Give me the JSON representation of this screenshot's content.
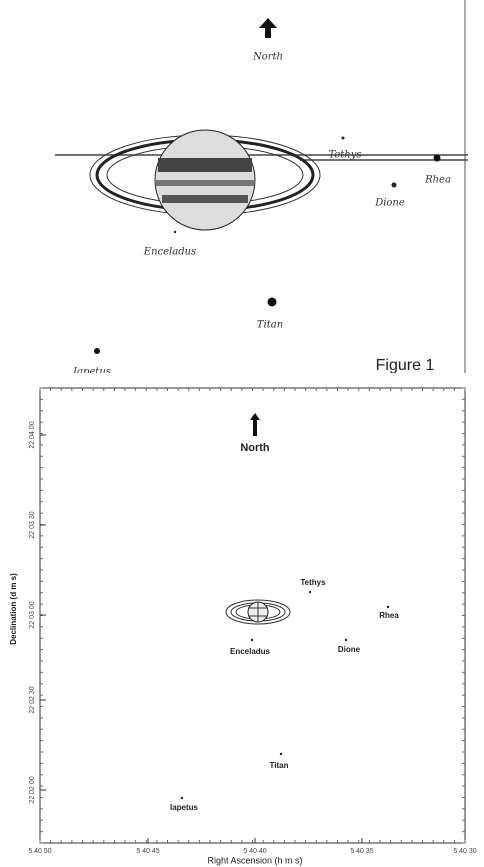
{
  "figure1": {
    "north": "North",
    "moons": [
      "Tethys",
      "Rhea",
      "Dione",
      "Enceladus",
      "Titan",
      "Iapetus"
    ],
    "caption": "Figure 1"
  },
  "plot": {
    "north": "North",
    "moons": [
      "Tethys",
      "Rhea",
      "Dione",
      "Enceladus",
      "Titan",
      "Iapetus"
    ],
    "y_label": "Declination (d m s)",
    "x_label": "Right Ascension (h m s)",
    "x_ticks": [
      "5 40 50",
      "5 40 45",
      "5 40 40",
      "5 40 35",
      "5 40 30"
    ],
    "y_ticks": [
      "22 04 00",
      "22 03 30",
      "22 03 00",
      "22 02 30",
      "22 02 00"
    ]
  }
}
